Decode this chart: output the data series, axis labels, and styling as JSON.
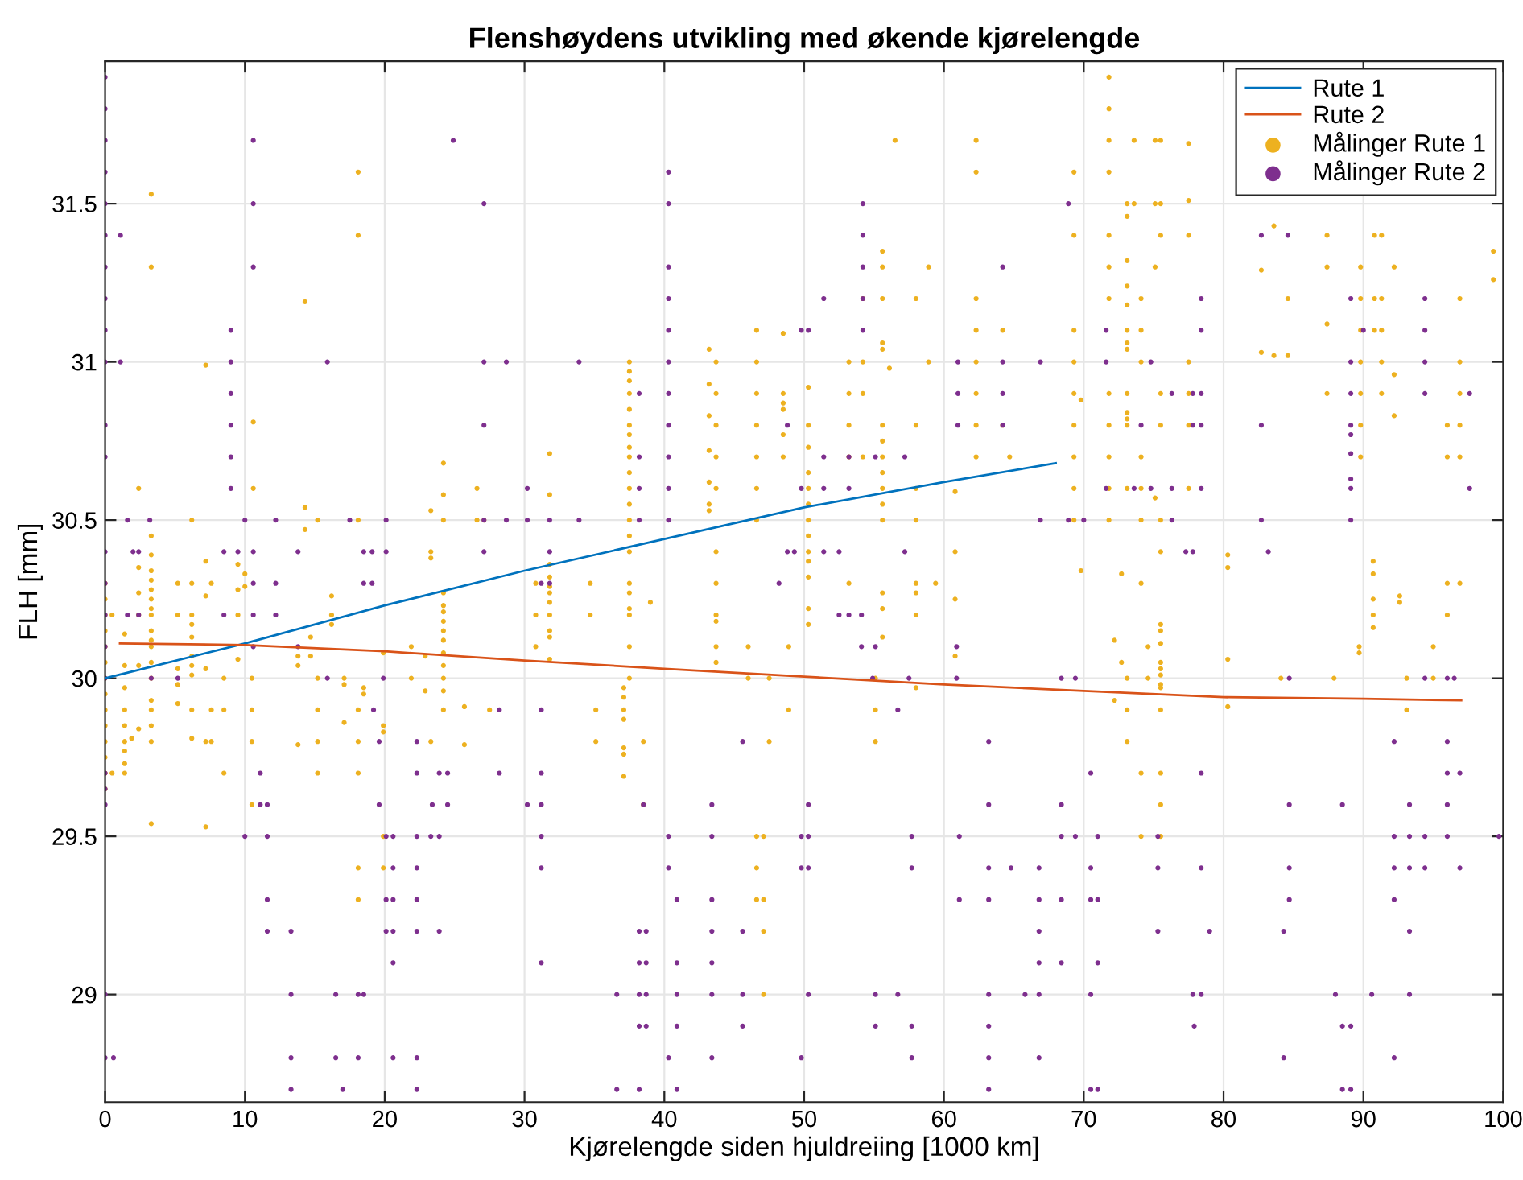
{
  "chart_data": {
    "type": "line",
    "title": "Flenshøydens utvikling med økende kjørelengde",
    "xlabel": "Kjørelengde siden hjuldreiing [1000 km]",
    "ylabel": "FLH [mm]",
    "xlim": [
      0,
      100
    ],
    "ylim": [
      28.66,
      31.95
    ],
    "xticks": [
      0,
      10,
      20,
      30,
      40,
      50,
      60,
      70,
      80,
      90,
      100
    ],
    "yticks": [
      29,
      29.5,
      30,
      30.5,
      31,
      31.5
    ],
    "grid": true,
    "legend": "top right",
    "series": [
      {
        "name": "Rute 1",
        "color": "#0072bd",
        "marker": "none",
        "x": [
          0,
          10,
          20,
          30,
          40,
          50,
          60,
          68
        ],
        "values": [
          30.0,
          30.11,
          30.23,
          30.34,
          30.44,
          30.54,
          30.62,
          30.68
        ]
      },
      {
        "name": "Rute 2",
        "color": "#d95319",
        "marker": "none",
        "x": [
          1.06,
          10,
          20,
          30,
          40,
          50,
          60,
          70,
          80,
          90,
          97
        ],
        "values": [
          30.11,
          30.105,
          30.085,
          30.056,
          30.03,
          30.005,
          29.98,
          29.96,
          29.94,
          29.935,
          29.93
        ]
      },
      {
        "name": "Målinger Rute 1",
        "type": "scatter",
        "color": "#edb120",
        "marker": "circle",
        "x": [
          3.3,
          3.3,
          18.1,
          18.1,
          14.3,
          7.2,
          10.6,
          2.4,
          10.6,
          14.3,
          14.3,
          6.2,
          15.2,
          18.1,
          3.3,
          3.3,
          24.2,
          24.2,
          24.2,
          23.3,
          26.6,
          26.6,
          27.1,
          31.8,
          31.8,
          37.5,
          37.5,
          37.5,
          37.5,
          37.5,
          37.5,
          37.5,
          37.5,
          37.5,
          37.5,
          37.5,
          37.5,
          37.5,
          37.5,
          37.5,
          43.2,
          43.2,
          43.2,
          43.2,
          43.2,
          43.2,
          43.2,
          43.7,
          43.7,
          43.7,
          43.7,
          43.7,
          46.6,
          46.6,
          46.6,
          46.6,
          46.6,
          46.6,
          46.6,
          48.5,
          48.5,
          48.5,
          48.5,
          48.5,
          48.5,
          56.5,
          62.3,
          62.3,
          69.3,
          71.8,
          71.8,
          71.8,
          71.8,
          73.6,
          75.1,
          75.5,
          77.5,
          73.1,
          73.6,
          75.1,
          75.5,
          77.5,
          73.1,
          73.1,
          69.3,
          71.8,
          75.5,
          77.5,
          55.6,
          58.9,
          55.6,
          71.8,
          75.1,
          54.2,
          55.6,
          58.0,
          62.3,
          71.8,
          73.1,
          73.1,
          74.1,
          62.3,
          64.2,
          69.3,
          73.1,
          74.1,
          55.6,
          55.6,
          73.1,
          73.1,
          53.2,
          54.2,
          58.9,
          62.3,
          69.3,
          74.1,
          77.5,
          56.1,
          50.3,
          53.2,
          54.2,
          62.3,
          69.3,
          71.8,
          73.1,
          75.5,
          77.5,
          69.8,
          73.1,
          73.1,
          50.3,
          53.2,
          55.6,
          58.0,
          62.3,
          64.2,
          69.3,
          71.8,
          73.1,
          75.5,
          77.5,
          50.3,
          50.3,
          50.3,
          50.3,
          50.3,
          50.3,
          50.3,
          55.6,
          55.6,
          55.6,
          55.6,
          55.6,
          55.6,
          53.2,
          54.2,
          58.0,
          58.0,
          60.8,
          62.3,
          64.7,
          69.3,
          71.8,
          74.1,
          77.5,
          69.3,
          71.8,
          73.1,
          74.1,
          75.1,
          69.3,
          71.8,
          74.1,
          75.5,
          83.6,
          87.4,
          90.8,
          91.3,
          99.3,
          99.3,
          82.7,
          87.4,
          89.8,
          92.2,
          84.6,
          89.8,
          90.8,
          91.3,
          96.9,
          87.4,
          89.8,
          90.8,
          91.3,
          82.7,
          83.6,
          84.6,
          89.8,
          91.3,
          96.9,
          92.2,
          87.4,
          89.8,
          91.3,
          96.9,
          92.2,
          96.0,
          96.9,
          89.8,
          89.8,
          96.0,
          96.9,
          80.3,
          80.3,
          0,
          0,
          0,
          0,
          0,
          0,
          0,
          0,
          0,
          0,
          0,
          0,
          0,
          0,
          0.5,
          0.5,
          1.4,
          1.4,
          1.4,
          1.4,
          1.4,
          1.4,
          1.4,
          1.4,
          1.4,
          1.9,
          2.4,
          2.4,
          2.4,
          2.4,
          2.4,
          3.3,
          3.3,
          3.3,
          3.3,
          3.3,
          3.3,
          3.3,
          3.3,
          3.3,
          3.3,
          3.3,
          3.3,
          3.3,
          3.3,
          3.3,
          3.3,
          5.2,
          5.2,
          5.2,
          5.2,
          5.2,
          6.2,
          6.2,
          6.2,
          6.2,
          6.2,
          6.2,
          6.2,
          6.2,
          6.2,
          7.2,
          7.2,
          7.2,
          7.2,
          7.2,
          7.6,
          7.6,
          7.6,
          8.5,
          8.5,
          8.5,
          9.5,
          9.5,
          9.5,
          9.5,
          10.0,
          10.0,
          10.5,
          10.5,
          10.5,
          10.5,
          13.8,
          13.8,
          13.8,
          14.7,
          14.7,
          15.2,
          15.2,
          15.2,
          15.2,
          16.2,
          16.2,
          16.2,
          17.1,
          17.1,
          17.1,
          18.1,
          18.1,
          18.1,
          18.1,
          18.1,
          18.5,
          18.5,
          19.9,
          19.9,
          19.9,
          19.9,
          19.9,
          21.9,
          21.9,
          22.9,
          22.9,
          23.3,
          23.3,
          23.3,
          24.2,
          24.2,
          24.2,
          24.2,
          24.2,
          24.2,
          24.2,
          24.2,
          24.2,
          24.2,
          24.2,
          25.7,
          25.7,
          27.5,
          30.8,
          30.8,
          30.8,
          31.8,
          31.8,
          31.8,
          31.8,
          31.8,
          31.8,
          31.8,
          31.8,
          31.8,
          34.7,
          34.7,
          35.1,
          35.1,
          37.1,
          37.1,
          37.1,
          37.1,
          37.1,
          37.1,
          37.1,
          37.5,
          37.5,
          37.5,
          37.5,
          37.5,
          37.5,
          38.5,
          38.5,
          39.0,
          43.7,
          43.7,
          43.7,
          43.7,
          43.7,
          43.7,
          46.0,
          46.0,
          46.6,
          46.6,
          46.6,
          47.1,
          47.1,
          47.1,
          47.1,
          47.5,
          47.5,
          48.9,
          48.9,
          50.3,
          50.3,
          50.3,
          50.3,
          53.2,
          55.6,
          55.6,
          55.6,
          58.0,
          58.0,
          58.0,
          58.0,
          55.1,
          55.1,
          55.1,
          59.4,
          60.8,
          60.8,
          60.8,
          69.8,
          72.7,
          72.7,
          74.1,
          74.1,
          74.1,
          72.2,
          72.2,
          73.1,
          73.1,
          73.1,
          74.6,
          74.6,
          75.5,
          75.5,
          75.5,
          75.5,
          75.5,
          75.5,
          75.5,
          75.5,
          75.5,
          75.5,
          75.5,
          75.5,
          75.5,
          80.3,
          80.3,
          84.1,
          87.9,
          89.7,
          89.7,
          90.7,
          90.7,
          90.7,
          90.7,
          90.7,
          92.6,
          92.6,
          93.1,
          93.1,
          95.0,
          95.0,
          96.0,
          96.0,
          96.9
        ],
        "values": [
          31.53,
          31.3,
          31.6,
          31.4,
          31.19,
          30.99,
          30.81,
          30.6,
          30.6,
          30.54,
          30.47,
          30.5,
          30.5,
          30.5,
          30.45,
          30.39,
          30.68,
          30.58,
          30.5,
          30.53,
          30.6,
          30.5,
          30.5,
          30.71,
          30.58,
          31.0,
          30.97,
          30.94,
          30.9,
          30.85,
          30.8,
          30.77,
          30.73,
          30.7,
          30.65,
          30.6,
          30.55,
          30.5,
          30.45,
          30.4,
          31.04,
          30.93,
          30.83,
          30.72,
          30.62,
          30.55,
          30.53,
          31.0,
          30.9,
          30.8,
          30.7,
          30.6,
          31.1,
          31.0,
          30.9,
          30.8,
          30.7,
          30.6,
          30.5,
          31.09,
          30.9,
          30.87,
          30.85,
          30.77,
          30.7,
          31.7,
          31.7,
          31.6,
          31.6,
          31.9,
          31.8,
          31.7,
          31.6,
          31.7,
          31.7,
          31.7,
          31.69,
          31.5,
          31.5,
          31.5,
          31.5,
          31.51,
          31.46,
          31.32,
          31.4,
          31.4,
          31.4,
          31.4,
          31.35,
          31.3,
          31.3,
          31.3,
          31.3,
          31.2,
          31.2,
          31.2,
          31.2,
          31.2,
          31.24,
          31.18,
          31.2,
          31.1,
          31.1,
          31.1,
          31.1,
          31.1,
          31.06,
          31.04,
          31.06,
          31.04,
          31.0,
          31.0,
          31.0,
          31.0,
          31.0,
          31.0,
          31.0,
          30.98,
          30.92,
          30.9,
          30.9,
          30.9,
          30.9,
          30.9,
          30.9,
          30.9,
          30.9,
          30.88,
          30.84,
          30.82,
          30.8,
          30.8,
          30.8,
          30.8,
          30.8,
          30.8,
          30.8,
          30.8,
          30.8,
          30.8,
          30.8,
          30.73,
          30.65,
          30.6,
          30.55,
          30.5,
          30.45,
          30.4,
          30.75,
          30.7,
          30.65,
          30.6,
          30.55,
          30.5,
          30.7,
          30.7,
          30.6,
          30.5,
          30.59,
          30.7,
          30.7,
          30.7,
          30.7,
          30.7,
          30.6,
          30.6,
          30.6,
          30.6,
          30.6,
          30.57,
          30.5,
          30.5,
          30.5,
          30.5,
          31.43,
          31.4,
          31.4,
          31.4,
          31.35,
          31.26,
          31.29,
          31.3,
          31.3,
          31.3,
          31.2,
          31.2,
          31.2,
          31.2,
          31.2,
          31.12,
          31.1,
          31.1,
          31.1,
          31.03,
          31.02,
          31.02,
          31.0,
          31.0,
          31.0,
          30.96,
          30.9,
          30.9,
          30.9,
          30.9,
          30.83,
          30.8,
          30.8,
          30.8,
          30.7,
          30.7,
          30.7,
          30.39,
          30.35,
          30.3,
          30.25,
          30.2,
          30.15,
          30.1,
          30.05,
          30.0,
          29.95,
          29.9,
          29.85,
          29.8,
          29.75,
          29.7,
          29.65,
          30.2,
          29.7,
          30.14,
          30.04,
          29.97,
          29.9,
          29.85,
          29.8,
          29.77,
          29.73,
          29.7,
          29.81,
          30.35,
          30.27,
          30.2,
          30.04,
          29.84,
          30.34,
          30.31,
          30.28,
          30.25,
          30.22,
          30.2,
          30.15,
          30.12,
          30.1,
          30.05,
          30.0,
          29.93,
          29.9,
          29.85,
          29.8,
          29.54,
          30.3,
          30.2,
          30.03,
          29.98,
          29.92,
          30.3,
          30.2,
          30.17,
          30.13,
          30.07,
          30.04,
          30.01,
          29.9,
          29.81,
          30.37,
          30.26,
          30.03,
          29.8,
          29.53,
          30.3,
          29.9,
          29.8,
          30.0,
          29.9,
          29.7,
          30.36,
          30.28,
          30.2,
          30.06,
          30.33,
          30.29,
          30.0,
          29.9,
          29.8,
          29.6,
          30.07,
          30.04,
          29.79,
          30.13,
          30.07,
          30.0,
          29.9,
          29.8,
          29.7,
          30.26,
          30.2,
          30.17,
          30.0,
          29.98,
          29.86,
          29.9,
          29.8,
          29.7,
          29.4,
          29.3,
          29.97,
          29.95,
          30.08,
          29.85,
          29.83,
          29.5,
          29.4,
          30.1,
          30.0,
          30.07,
          29.96,
          30.4,
          30.38,
          29.8,
          30.27,
          30.23,
          30.21,
          30.18,
          30.15,
          30.12,
          30.08,
          30.04,
          30.0,
          29.96,
          29.9,
          29.91,
          29.79,
          29.9,
          30.3,
          30.2,
          30.1,
          30.36,
          30.32,
          30.29,
          30.27,
          30.24,
          30.2,
          30.15,
          30.13,
          30.06,
          30.3,
          30.2,
          29.9,
          29.8,
          29.97,
          29.94,
          29.9,
          29.87,
          29.78,
          29.76,
          29.69,
          30.3,
          30.27,
          30.22,
          30.2,
          30.1,
          30.0,
          29.8,
          29.6,
          30.24,
          30.4,
          30.3,
          30.2,
          30.18,
          30.1,
          30.05,
          30.1,
          30.0,
          29.5,
          29.4,
          29.3,
          29.5,
          29.3,
          29.2,
          29.0,
          30.0,
          29.8,
          30.1,
          29.9,
          30.37,
          30.32,
          30.22,
          30.17,
          30.3,
          30.27,
          30.22,
          30.13,
          30.3,
          30.27,
          30.2,
          29.97,
          30.0,
          29.9,
          29.8,
          30.3,
          30.4,
          30.25,
          30.07,
          30.34,
          30.33,
          30.05,
          30.3,
          29.7,
          29.5,
          30.12,
          29.93,
          30.0,
          29.9,
          29.8,
          30.1,
          30.0,
          30.4,
          30.17,
          30.15,
          30.11,
          30.05,
          30.03,
          30.01,
          29.98,
          29.97,
          29.9,
          29.7,
          29.6,
          29.5,
          30.06,
          29.91,
          30.0,
          30.0,
          30.1,
          30.08,
          30.37,
          30.33,
          30.25,
          30.2,
          30.16,
          30.26,
          30.24,
          30.0,
          29.9,
          30.1,
          30.0,
          30.3,
          30.2,
          30.3
        ]
      },
      {
        "name": "Målinger Rute 2",
        "type": "scatter",
        "color": "#7e2f8e",
        "marker": "circle",
        "x": [
          0,
          0,
          0,
          0,
          0,
          0,
          0,
          0,
          0,
          0,
          0,
          0,
          0,
          0,
          0,
          0,
          0,
          0,
          0,
          0,
          0,
          0,
          0.6,
          1.1,
          1.1,
          1.6,
          1.6,
          2.0,
          2.4,
          2.4,
          3.2,
          3.3,
          5.2,
          8.5,
          8.5,
          9.0,
          9.0,
          9.0,
          9.0,
          9.0,
          9.0,
          9.5,
          10.0,
          10.0,
          10.6,
          10.6,
          10.6,
          10.6,
          10.6,
          10.6,
          10.6,
          11.1,
          11.1,
          11.6,
          11.6,
          11.6,
          11.6,
          12.2,
          12.2,
          12.2,
          13.3,
          13.3,
          13.3,
          13.3,
          13.8,
          13.8,
          15.9,
          15.9,
          16.5,
          16.5,
          17.0,
          17.5,
          18.1,
          18.1,
          18.5,
          18.5,
          18.5,
          19.1,
          19.1,
          19.2,
          19.6,
          19.6,
          19.9,
          20.1,
          20.1,
          20.1,
          20.1,
          20.1,
          20.6,
          20.6,
          20.6,
          20.6,
          20.6,
          20.6,
          22.3,
          22.3,
          22.3,
          22.3,
          22.3,
          22.3,
          22.3,
          22.3,
          23.3,
          23.4,
          23.9,
          23.9,
          23.9,
          24.5,
          24.5,
          24.9,
          27.1,
          27.1,
          27.1,
          27.1,
          27.1,
          28.2,
          28.2,
          28.7,
          28.7,
          30.2,
          30.2,
          30.2,
          31.2,
          31.2,
          31.2,
          31.2,
          31.2,
          31.2,
          31.2,
          31.8,
          31.8,
          31.8,
          33.9,
          33.9,
          36.6,
          36.6,
          38.2,
          38.2,
          38.2,
          38.2,
          38.2,
          38.2,
          38.2,
          38.2,
          38.2,
          38.5,
          38.7,
          38.7,
          38.7,
          38.7,
          40.3,
          40.3,
          40.3,
          40.3,
          40.3,
          40.3,
          40.3,
          40.3,
          40.3,
          40.3,
          40.3,
          40.3,
          40.3,
          40.3,
          40.9,
          40.9,
          40.9,
          40.9,
          40.9,
          43.4,
          43.4,
          43.4,
          43.4,
          43.4,
          43.4,
          43.4,
          45.6,
          45.6,
          45.6,
          45.6,
          48.2,
          48.8,
          48.8,
          49.3,
          49.8,
          49.8,
          49.8,
          49.8,
          49.8,
          50.3,
          50.3,
          50.3,
          50.3,
          50.3,
          51.4,
          51.4,
          51.4,
          51.4,
          52.5,
          52.5,
          53.2,
          53.2,
          53.2,
          54.1,
          54.1,
          54.2,
          54.2,
          54.2,
          54.2,
          54.2,
          54.9,
          55.1,
          55.1,
          55.1,
          55.1,
          56.7,
          56.7,
          57.2,
          57.2,
          57.5,
          57.7,
          57.7,
          57.7,
          57.7,
          60.9,
          60.9,
          61.0,
          61.0,
          61.0,
          61.1,
          61.1,
          63.2,
          63.2,
          63.2,
          63.2,
          63.2,
          63.2,
          63.2,
          63.2,
          64.2,
          64.2,
          64.2,
          64.2,
          64.8,
          65.8,
          66.8,
          66.8,
          66.8,
          66.8,
          66.8,
          66.8,
          66.9,
          66.9,
          68.4,
          68.4,
          68.4,
          68.4,
          68.4,
          68.9,
          68.9,
          69.4,
          69.4,
          70.0,
          70.5,
          70.5,
          70.5,
          70.5,
          70.5,
          71.0,
          71.0,
          71.0,
          71.0,
          71.6,
          71.6,
          71.6,
          73.6,
          74.1,
          74.8,
          74.8,
          75.3,
          75.3,
          75.3,
          76.3,
          76.3,
          76.3,
          77.3,
          77.8,
          77.8,
          77.8,
          77.8,
          77.9,
          78.4,
          78.4,
          78.4,
          78.4,
          78.4,
          78.4,
          78.4,
          78.4,
          79.0,
          82.7,
          82.7,
          82.7,
          83.2,
          84.3,
          84.3,
          84.6,
          84.7,
          84.7,
          84.7,
          84.7,
          88.0,
          88.5,
          88.5,
          88.5,
          89.1,
          89.1,
          89.1,
          89.1,
          89.1,
          89.1,
          89.1,
          89.1,
          89.1,
          89.1,
          89.1,
          90.0,
          90.6,
          92.2,
          92.2,
          92.2,
          92.2,
          92.2,
          93.3,
          93.3,
          93.3,
          93.3,
          93.3,
          94.4,
          94.4,
          94.4,
          94.4,
          94.4,
          94.4,
          94.4,
          96.0,
          96.0,
          96.0,
          96.0,
          96.0,
          96.5,
          96.9,
          96.9,
          97.6,
          97.6,
          99.7
        ],
        "values": [
          31.9,
          31.8,
          31.7,
          31.6,
          31.5,
          31.4,
          31.3,
          31.2,
          31.1,
          31.0,
          30.8,
          30.7,
          30.4,
          30.3,
          30.2,
          30.1,
          30.0,
          29.7,
          29.65,
          29.6,
          29.0,
          28.8,
          28.8,
          31.4,
          31.0,
          30.5,
          30.2,
          30.4,
          30.4,
          30.2,
          30.5,
          30.0,
          30.0,
          30.4,
          30.2,
          31.1,
          31.0,
          30.9,
          30.8,
          30.7,
          30.6,
          30.4,
          30.5,
          29.5,
          31.7,
          31.5,
          31.3,
          30.4,
          30.3,
          30.2,
          30.1,
          29.7,
          29.6,
          29.6,
          29.5,
          29.3,
          29.2,
          30.5,
          30.3,
          30.2,
          29.2,
          29.0,
          28.8,
          28.7,
          30.4,
          30.1,
          31.0,
          30.0,
          29.0,
          28.8,
          28.7,
          30.5,
          29.0,
          28.8,
          30.4,
          30.3,
          29.0,
          30.4,
          30.3,
          29.9,
          29.8,
          29.6,
          30.0,
          30.5,
          30.4,
          29.5,
          29.3,
          29.2,
          29.5,
          29.4,
          29.3,
          29.2,
          29.1,
          28.8,
          29.8,
          29.7,
          29.5,
          29.4,
          29.3,
          29.2,
          28.8,
          28.7,
          29.5,
          29.6,
          29.7,
          29.5,
          29.2,
          29.7,
          29.6,
          31.7,
          31.5,
          31.0,
          30.8,
          30.5,
          30.4,
          29.9,
          29.7,
          31.0,
          30.5,
          30.6,
          30.5,
          29.6,
          30.3,
          29.9,
          29.7,
          29.6,
          29.5,
          29.4,
          29.1,
          30.5,
          30.4,
          30.3,
          31.0,
          30.5,
          29.0,
          28.7,
          30.9,
          30.7,
          30.6,
          30.5,
          29.2,
          29.1,
          29.0,
          28.9,
          28.7,
          29.6,
          29.2,
          29.1,
          29.0,
          28.9,
          31.6,
          31.5,
          31.3,
          31.2,
          31.1,
          31.0,
          30.9,
          30.8,
          30.7,
          30.6,
          30.5,
          29.5,
          29.4,
          28.8,
          29.3,
          29.1,
          29.0,
          28.9,
          28.7,
          29.6,
          29.5,
          29.3,
          29.2,
          29.1,
          29.0,
          28.8,
          29.8,
          29.2,
          29.0,
          28.9,
          30.3,
          30.8,
          30.4,
          30.4,
          31.1,
          30.6,
          29.5,
          29.4,
          28.8,
          31.1,
          29.6,
          29.5,
          29.4,
          29.0,
          31.2,
          30.7,
          30.6,
          30.4,
          30.4,
          30.2,
          30.7,
          30.6,
          30.2,
          30.2,
          30.1,
          31.5,
          31.4,
          31.3,
          31.2,
          31.1,
          30.0,
          30.7,
          30.1,
          29.0,
          28.9,
          29.9,
          29.0,
          30.7,
          30.4,
          30.0,
          29.5,
          29.4,
          28.9,
          28.8,
          30.1,
          30.0,
          31.0,
          30.9,
          30.8,
          29.5,
          29.3,
          29.8,
          29.6,
          29.4,
          29.3,
          29.0,
          28.9,
          28.8,
          28.7,
          31.3,
          31.0,
          30.9,
          30.8,
          29.4,
          29.0,
          29.4,
          29.3,
          29.2,
          29.1,
          29.0,
          28.8,
          31.0,
          30.5,
          30.0,
          29.6,
          29.5,
          29.3,
          29.1,
          31.5,
          30.5,
          30.0,
          29.5,
          30.5,
          29.7,
          29.4,
          29.3,
          29.0,
          28.7,
          29.5,
          29.3,
          29.1,
          28.7,
          31.1,
          31.0,
          30.6,
          30.6,
          30.8,
          31.0,
          30.6,
          29.5,
          29.4,
          29.2,
          30.9,
          30.6,
          30.5,
          30.4,
          30.9,
          30.8,
          30.4,
          29.0,
          28.9,
          31.2,
          31.1,
          30.9,
          30.8,
          30.6,
          29.7,
          29.4,
          29.0,
          29.2,
          31.4,
          30.8,
          30.5,
          30.4,
          29.2,
          28.8,
          31.4,
          30.0,
          29.6,
          29.4,
          29.3,
          29.0,
          29.6,
          28.9,
          28.7,
          31.2,
          31.0,
          30.9,
          30.8,
          30.77,
          30.71,
          30.63,
          30.6,
          30.5,
          28.9,
          28.7,
          31.1,
          29.0,
          29.8,
          29.5,
          29.4,
          29.3,
          28.8,
          29.6,
          29.5,
          29.4,
          29.2,
          29.0,
          31.2,
          31.1,
          31.0,
          30.9,
          30.0,
          29.5,
          29.4,
          30.0,
          29.8,
          29.7,
          29.6,
          29.5,
          30.0,
          29.7,
          29.4,
          30.9,
          30.6,
          29.5
        ]
      }
    ]
  }
}
